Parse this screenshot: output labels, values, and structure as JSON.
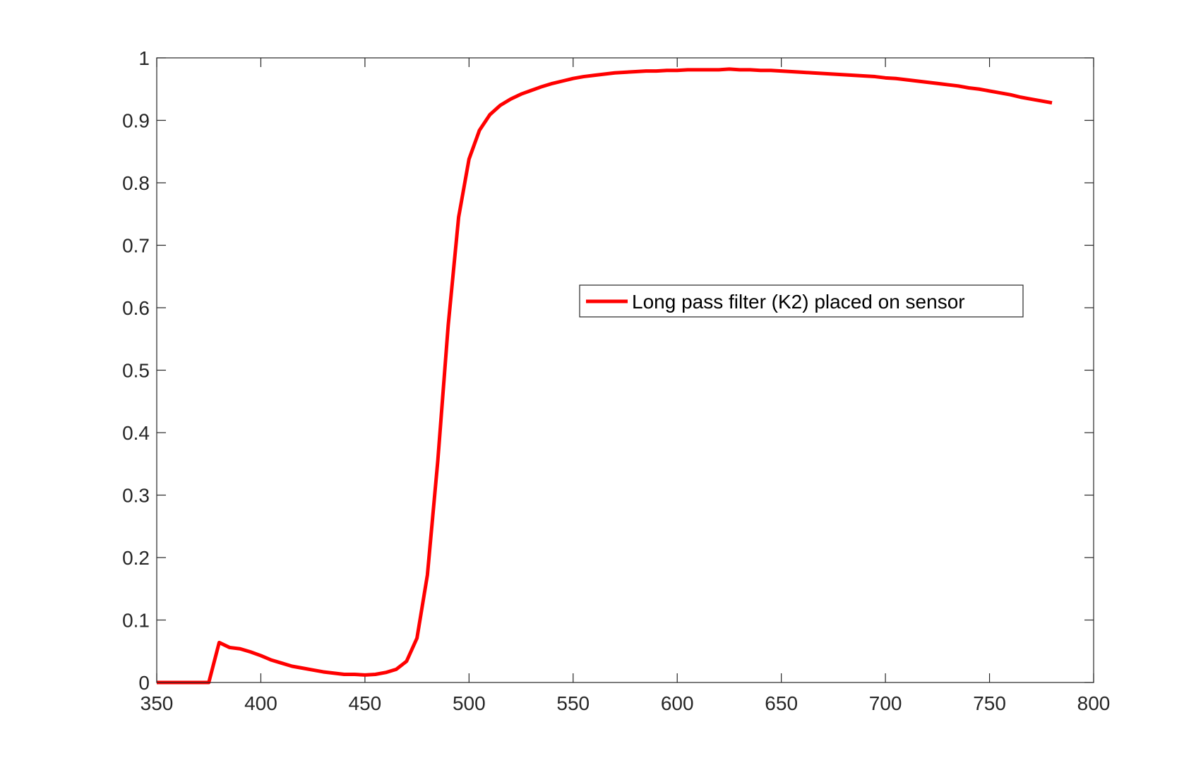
{
  "chart_data": {
    "type": "line",
    "title": "",
    "xlabel": "",
    "ylabel": "",
    "xlim": [
      350,
      800
    ],
    "ylim": [
      0,
      1
    ],
    "xticks": [
      350,
      400,
      450,
      500,
      550,
      600,
      650,
      700,
      750,
      800
    ],
    "yticks": [
      0,
      0.1,
      0.2,
      0.3,
      0.4,
      0.5,
      0.6,
      0.7,
      0.8,
      0.9,
      1
    ],
    "xtick_labels": [
      "350",
      "400",
      "450",
      "500",
      "550",
      "600",
      "650",
      "700",
      "750",
      "800"
    ],
    "ytick_labels": [
      "0",
      "0.1",
      "0.2",
      "0.3",
      "0.4",
      "0.5",
      "0.6",
      "0.7",
      "0.8",
      "0.9",
      "1"
    ],
    "grid": false,
    "box": true,
    "legend": {
      "position": "center-right",
      "entries": [
        "Long pass filter (K2) placed on sensor"
      ]
    },
    "series": [
      {
        "name": "Long pass filter (K2) placed on sensor",
        "color": "#ff0000",
        "x": [
          350,
          355,
          360,
          365,
          370,
          375,
          380,
          385,
          390,
          395,
          400,
          405,
          410,
          415,
          420,
          425,
          430,
          435,
          440,
          445,
          450,
          455,
          460,
          465,
          470,
          475,
          480,
          485,
          490,
          495,
          500,
          505,
          510,
          515,
          520,
          525,
          530,
          535,
          540,
          545,
          550,
          555,
          560,
          565,
          570,
          575,
          580,
          585,
          590,
          595,
          600,
          605,
          610,
          615,
          620,
          625,
          630,
          635,
          640,
          645,
          650,
          655,
          660,
          665,
          670,
          675,
          680,
          685,
          690,
          695,
          700,
          705,
          710,
          715,
          720,
          725,
          730,
          735,
          740,
          745,
          750,
          755,
          760,
          765,
          770,
          775,
          780
        ],
        "y": [
          0,
          0,
          0,
          0,
          0,
          0,
          0.064,
          0.056,
          0.054,
          0.049,
          0.043,
          0.036,
          0.031,
          0.026,
          0.023,
          0.02,
          0.017,
          0.015,
          0.013,
          0.013,
          0.012,
          0.013,
          0.016,
          0.021,
          0.034,
          0.071,
          0.172,
          0.355,
          0.572,
          0.745,
          0.838,
          0.884,
          0.909,
          0.924,
          0.934,
          0.942,
          0.948,
          0.954,
          0.959,
          0.963,
          0.967,
          0.97,
          0.972,
          0.974,
          0.976,
          0.977,
          0.978,
          0.979,
          0.979,
          0.98,
          0.98,
          0.981,
          0.981,
          0.981,
          0.981,
          0.982,
          0.981,
          0.981,
          0.98,
          0.98,
          0.979,
          0.978,
          0.977,
          0.976,
          0.975,
          0.974,
          0.973,
          0.972,
          0.971,
          0.97,
          0.968,
          0.967,
          0.965,
          0.963,
          0.961,
          0.959,
          0.957,
          0.955,
          0.952,
          0.95,
          0.947,
          0.944,
          0.941,
          0.937,
          0.934,
          0.931,
          0.928
        ]
      }
    ]
  }
}
